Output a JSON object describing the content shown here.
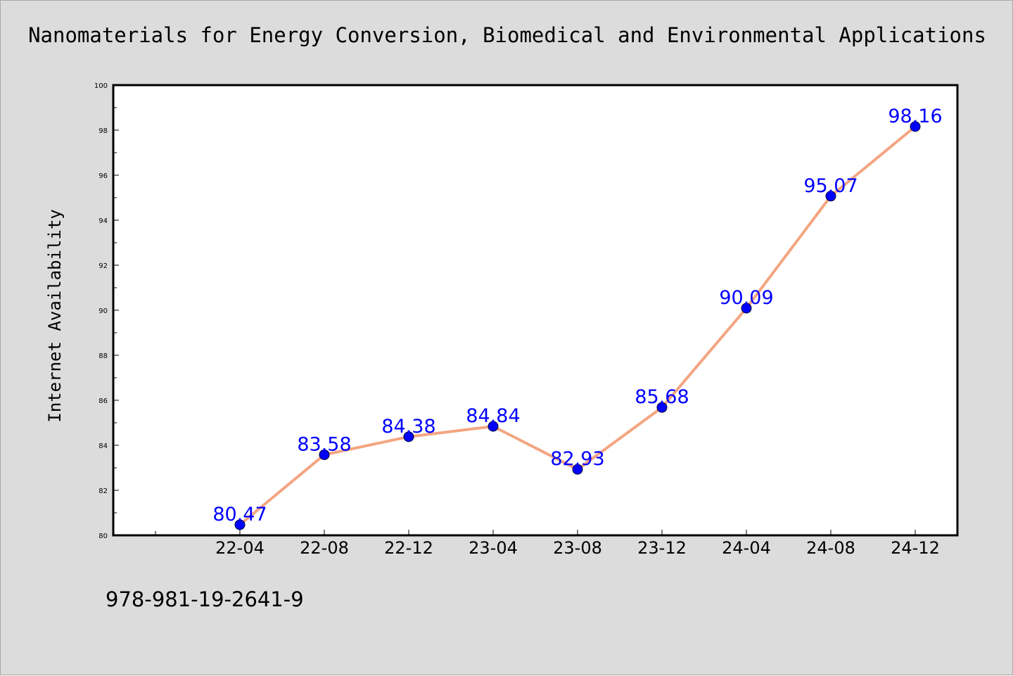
{
  "chart_data": {
    "type": "line",
    "title": "Nanomaterials for Energy Conversion, Biomedical and Environmental Applications",
    "xlabel": "",
    "ylabel": "Internet Availability",
    "categories": [
      "22-04",
      "22-08",
      "22-12",
      "23-04",
      "23-08",
      "23-12",
      "24-04",
      "24-08",
      "24-12"
    ],
    "series": [
      {
        "values": [
          80.47,
          83.58,
          84.38,
          84.84,
          82.93,
          85.68,
          90.09,
          95.07,
          98.16
        ],
        "labels": [
          "80.47",
          "83.58",
          "84.38",
          "84.84",
          "82.93",
          "85.68",
          "90.09",
          "95.07",
          "98.16"
        ]
      }
    ],
    "ylim": [
      80,
      100
    ],
    "yticks": [
      "80",
      "82",
      "84",
      "86",
      "88",
      "90",
      "92",
      "94",
      "96",
      "98",
      "100"
    ],
    "grid": false,
    "legend": "none",
    "colors": {
      "line": "#f4a582",
      "marker": "#0000ff",
      "data_label": "#0000ff",
      "background": "#dcdcdc",
      "plot_background": "#ffffff"
    }
  },
  "footer": {
    "isbn": "978-981-19-2641-9"
  }
}
